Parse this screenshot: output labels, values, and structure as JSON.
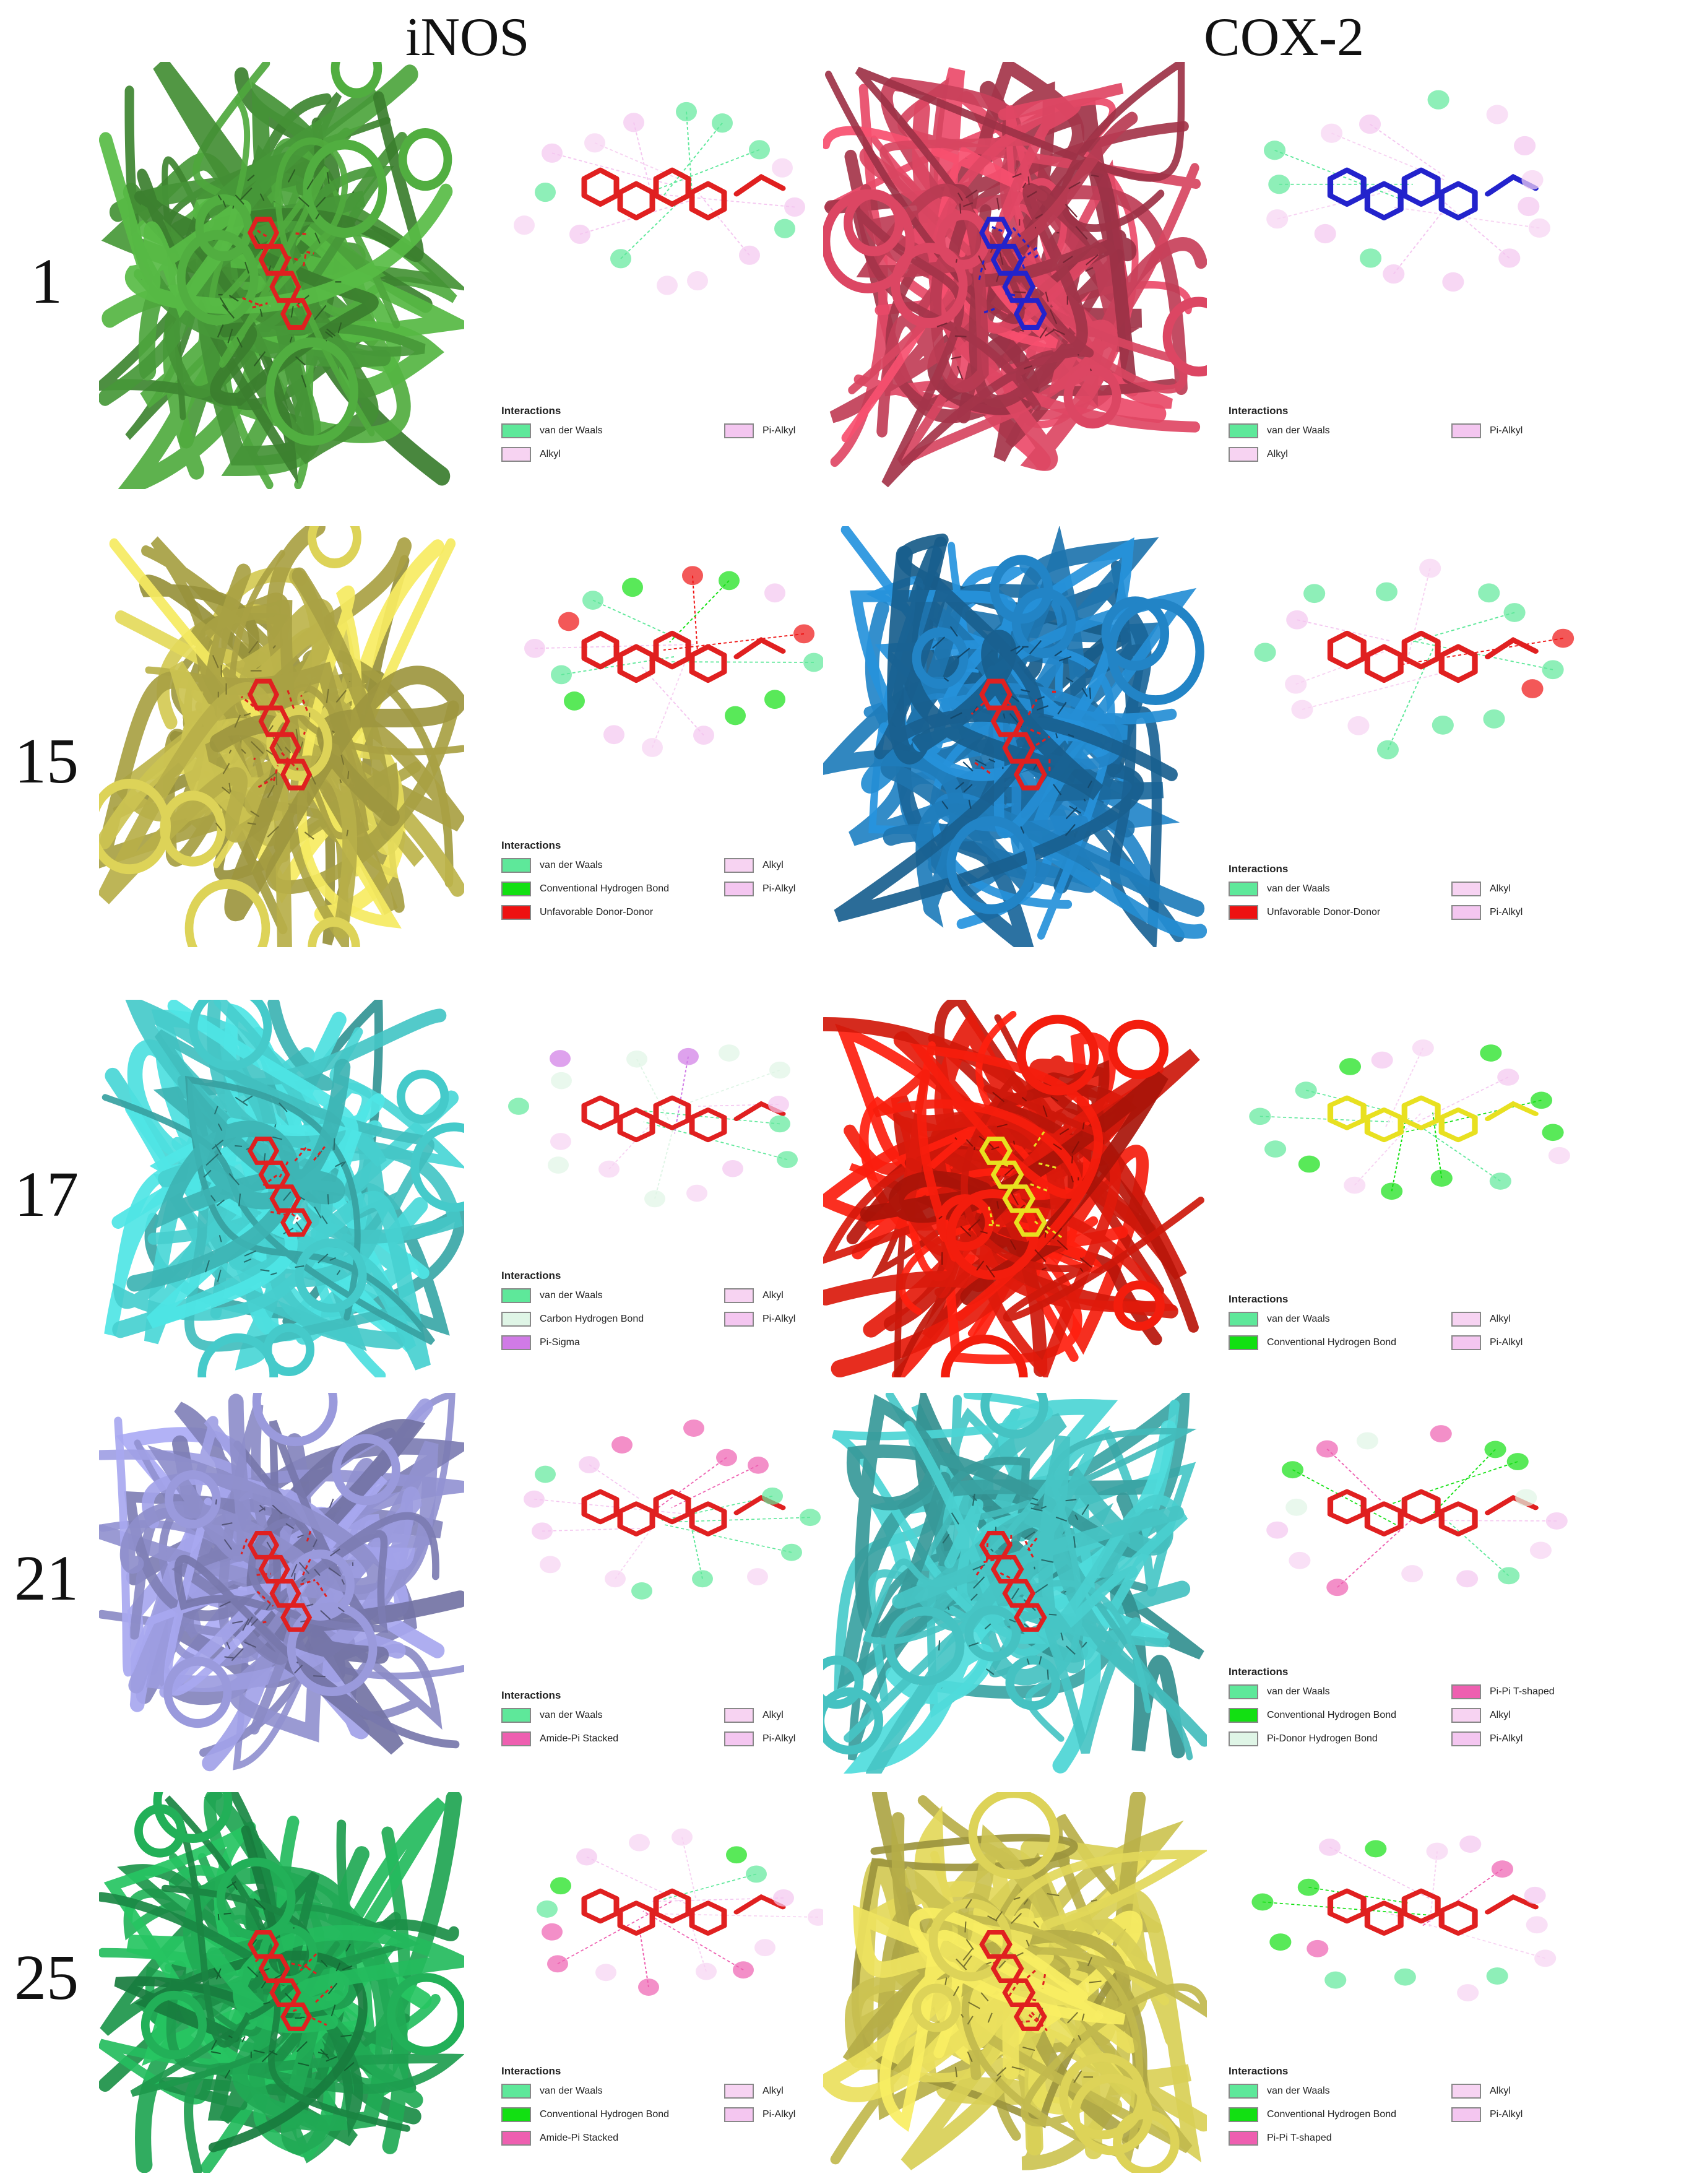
{
  "column_headers": [
    "iNOS",
    "COX-2"
  ],
  "rows": [
    {
      "label": "1",
      "panels": [
        {
          "target": "iNOS",
          "protein_color": "#4a9e3a",
          "ligand_color": "#e02020",
          "legend": {
            "title": "Interactions",
            "items": [
              {
                "label": "van der Waals",
                "color": "#5ee89a"
              },
              {
                "label": "Pi-Alkyl",
                "color": "#f4c6f0"
              },
              {
                "label": "Alkyl",
                "color": "#f7d3f2"
              }
            ]
          }
        },
        {
          "target": "COX-2",
          "protein_color": "#c8405a",
          "ligand_color": "#2323cc",
          "legend": {
            "title": "Interactions",
            "items": [
              {
                "label": "van der Waals",
                "color": "#5ee89a"
              },
              {
                "label": "Pi-Alkyl",
                "color": "#f4c6f0"
              },
              {
                "label": "Alkyl",
                "color": "#f7d3f2"
              }
            ]
          }
        }
      ]
    },
    {
      "label": "15",
      "panels": [
        {
          "target": "iNOS",
          "protein_color": "#c9c050",
          "ligand_color": "#e02020",
          "legend": {
            "title": "Interactions",
            "items": [
              {
                "label": "van der Waals",
                "color": "#5ee89a"
              },
              {
                "label": "Alkyl",
                "color": "#f7d3f2"
              },
              {
                "label": "Conventional Hydrogen Bond",
                "color": "#12e012"
              },
              {
                "label": "Pi-Alkyl",
                "color": "#f4c6f0"
              },
              {
                "label": "Unfavorable Donor-Donor",
                "color": "#ee1111"
              }
            ]
          }
        },
        {
          "target": "COX-2",
          "protein_color": "#1f78b4",
          "ligand_color": "#e02020",
          "legend": {
            "title": "Interactions",
            "items": [
              {
                "label": "van der Waals",
                "color": "#5ee89a"
              },
              {
                "label": "Alkyl",
                "color": "#f7d3f2"
              },
              {
                "label": "Unfavorable Donor-Donor",
                "color": "#ee1111"
              },
              {
                "label": "Pi-Alkyl",
                "color": "#f4c6f0"
              }
            ]
          }
        }
      ]
    },
    {
      "label": "17",
      "panels": [
        {
          "target": "iNOS",
          "protein_color": "#3fb8b8",
          "ligand_color": "#e02020",
          "legend": {
            "title": "Interactions",
            "items": [
              {
                "label": "van der Waals",
                "color": "#5ee89a"
              },
              {
                "label": "Alkyl",
                "color": "#f7d3f2"
              },
              {
                "label": "Carbon Hydrogen Bond",
                "color": "#dff5e6"
              },
              {
                "label": "Pi-Alkyl",
                "color": "#f4c6f0"
              },
              {
                "label": "Pi-Sigma",
                "color": "#d07ae6"
              }
            ]
          }
        },
        {
          "target": "COX-2",
          "protein_color": "#dd1a0c",
          "ligand_color": "#e8e020",
          "legend": {
            "title": "Interactions",
            "items": [
              {
                "label": "van der Waals",
                "color": "#5ee89a"
              },
              {
                "label": "Alkyl",
                "color": "#f7d3f2"
              },
              {
                "label": "Conventional Hydrogen Bond",
                "color": "#12e012"
              },
              {
                "label": "Pi-Alkyl",
                "color": "#f4c6f0"
              }
            ]
          }
        }
      ]
    },
    {
      "label": "21",
      "panels": [
        {
          "target": "iNOS",
          "protein_color": "#8c8cc8",
          "ligand_color": "#e02020",
          "legend": {
            "title": "Interactions",
            "items": [
              {
                "label": "van der Waals",
                "color": "#5ee89a"
              },
              {
                "label": "Alkyl",
                "color": "#f7d3f2"
              },
              {
                "label": "Amide-Pi Stacked",
                "color": "#ee5fb0"
              },
              {
                "label": "Pi-Alkyl",
                "color": "#f4c6f0"
              }
            ]
          }
        },
        {
          "target": "COX-2",
          "protein_color": "#3fb0b0",
          "ligand_color": "#e02020",
          "legend": {
            "title": "Interactions",
            "items": [
              {
                "label": "van der Waals",
                "color": "#5ee89a"
              },
              {
                "label": "Pi-Pi T-shaped",
                "color": "#ee5fb0"
              },
              {
                "label": "Conventional Hydrogen Bond",
                "color": "#12e012"
              },
              {
                "label": "Alkyl",
                "color": "#f7d3f2"
              },
              {
                "label": "Pi-Donor Hydrogen Bond",
                "color": "#dff5e6"
              },
              {
                "label": "Pi-Alkyl",
                "color": "#f4c6f0"
              }
            ]
          }
        }
      ]
    },
    {
      "label": "25",
      "panels": [
        {
          "target": "iNOS",
          "protein_color": "#1fa050",
          "ligand_color": "#e02020",
          "legend": {
            "title": "Interactions",
            "items": [
              {
                "label": "van der Waals",
                "color": "#5ee89a"
              },
              {
                "label": "Alkyl",
                "color": "#f7d3f2"
              },
              {
                "label": "Conventional Hydrogen Bond",
                "color": "#12e012"
              },
              {
                "label": "Pi-Alkyl",
                "color": "#f4c6f0"
              },
              {
                "label": "Amide-Pi Stacked",
                "color": "#ee5fb0"
              }
            ]
          }
        },
        {
          "target": "COX-2",
          "protein_color": "#c9c050",
          "ligand_color": "#e02020",
          "legend": {
            "title": "Interactions",
            "items": [
              {
                "label": "van der Waals",
                "color": "#5ee89a"
              },
              {
                "label": "Alkyl",
                "color": "#f7d3f2"
              },
              {
                "label": "Conventional Hydrogen Bond",
                "color": "#12e012"
              },
              {
                "label": "Pi-Alkyl",
                "color": "#f4c6f0"
              },
              {
                "label": "Pi-Pi T-shaped",
                "color": "#ee5fb0"
              }
            ]
          }
        }
      ]
    }
  ]
}
